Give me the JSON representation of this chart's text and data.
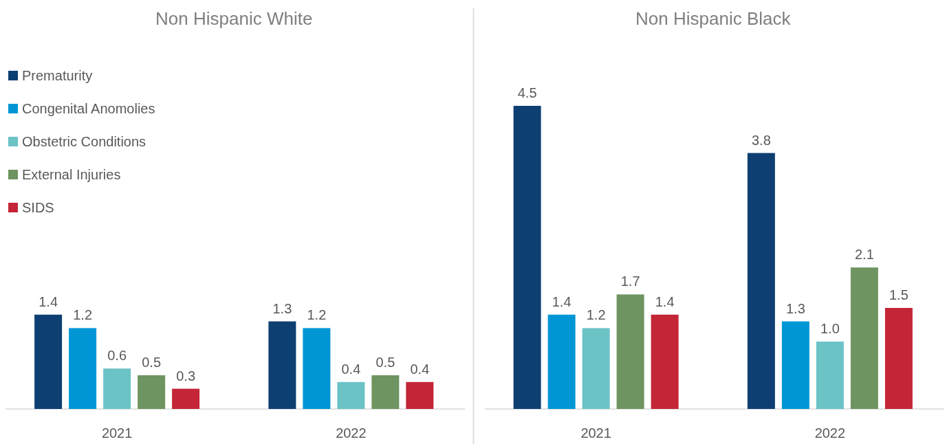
{
  "chart_data": [
    {
      "type": "bar",
      "title": "Non Hispanic White",
      "categories": [
        "2021",
        "2022"
      ],
      "legend": "top left",
      "series": [
        {
          "name": "Prematurity",
          "color": "#0e3f72",
          "values": [
            1.4,
            1.3
          ],
          "value_labels": [
            "1.4",
            "1.3"
          ]
        },
        {
          "name": "Congenital Anomolies",
          "color": "#0096d6",
          "values": [
            1.2,
            1.2
          ],
          "value_labels": [
            "1.2",
            "1.2"
          ]
        },
        {
          "name": "Obstetric Conditions",
          "color": "#6bc3c6",
          "values": [
            0.6,
            0.4
          ],
          "value_labels": [
            "0.6",
            "0.4"
          ]
        },
        {
          "name": "External Injuries",
          "color": "#6e9461",
          "values": [
            0.5,
            0.5
          ],
          "value_labels": [
            "0.5",
            "0.5"
          ]
        },
        {
          "name": "SIDS",
          "color": "#c42537",
          "values": [
            0.3,
            0.4
          ],
          "value_labels": [
            "0.3",
            "0.4"
          ]
        }
      ]
    },
    {
      "type": "bar",
      "title": "Non Hispanic Black",
      "categories": [
        "2021",
        "2022"
      ],
      "legend": false,
      "series": [
        {
          "color": "#0e3f72",
          "values": [
            4.5,
            3.8
          ],
          "value_labels": [
            "4.5",
            "3.8"
          ]
        },
        {
          "color": "#0096d6",
          "values": [
            1.4,
            1.3
          ],
          "value_labels": [
            "1.4",
            "1.3"
          ]
        },
        {
          "color": "#6bc3c6",
          "values": [
            1.2,
            1.0
          ],
          "value_labels": [
            "1.2",
            "1.0"
          ]
        },
        {
          "color": "#6e9461",
          "values": [
            1.7,
            2.1
          ],
          "value_labels": [
            "1.7",
            "2.1"
          ]
        },
        {
          "color": "#c42537",
          "values": [
            1.4,
            1.5
          ],
          "value_labels": [
            "1.4",
            "1.5"
          ]
        }
      ]
    }
  ]
}
